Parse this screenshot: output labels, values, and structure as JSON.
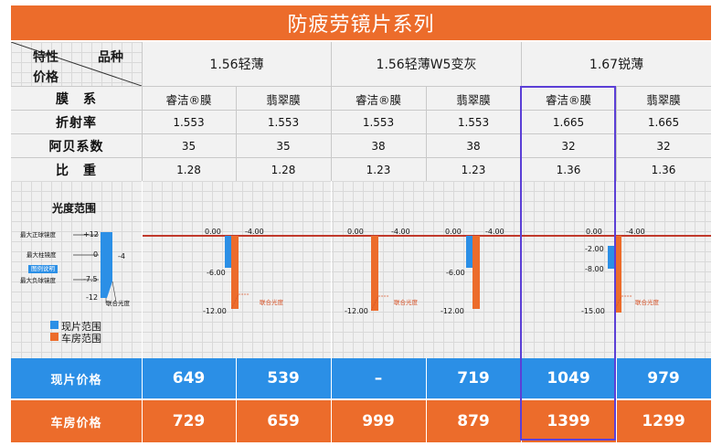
{
  "title": "防疲劳镜片系列",
  "header": {
    "corner_top": "特性",
    "corner_right": "品种",
    "corner_bottom": "价格",
    "groups": [
      "1.56轻薄",
      "1.56轻薄W5变灰",
      "1.67锐薄"
    ]
  },
  "rows": {
    "coating": {
      "label": "膜　系",
      "values": [
        "睿洁®膜",
        "翡翠膜",
        "睿洁®膜",
        "翡翠膜",
        "睿洁®膜",
        "翡翠膜"
      ]
    },
    "refraction": {
      "label": "折射率",
      "values": [
        "1.553",
        "1.553",
        "1.553",
        "1.553",
        "1.665",
        "1.665"
      ]
    },
    "abbe": {
      "label": "阿贝系数",
      "values": [
        "35",
        "35",
        "38",
        "38",
        "32",
        "32"
      ]
    },
    "gravity": {
      "label": "比　重",
      "values": [
        "1.28",
        "1.28",
        "1.23",
        "1.23",
        "1.36",
        "1.36"
      ]
    }
  },
  "range_panel": {
    "title": "光度范围",
    "legend_key": {
      "max_plus_sph": "最大正球镜度",
      "max_cyl": "最大柱镜度",
      "button": "图例说明",
      "max_minus_sph": "最大负球镜度",
      "v_plus12": "+12",
      "v_0": "0",
      "v_minus4": "-4",
      "v_minus75": "-7.5",
      "v_minus12": "-12",
      "combined": "联合光度"
    },
    "legend": {
      "stock": "现片范围",
      "lab": "车房范围"
    },
    "colors": {
      "stock": "#2b8fe6",
      "lab": "#ec6c2b",
      "baseline": "#c0392b"
    },
    "combined_label": "联合光度",
    "cells": [
      {
        "top_left": "0.00",
        "top_right": "-4.00",
        "labels": [
          "-6.00",
          "-12.00"
        ],
        "show_combined": true
      },
      {
        "top_left": "0.00",
        "top_right": "-4.00",
        "labels": [
          "-12.00"
        ],
        "show_combined": true
      },
      {
        "top_left": "0.00",
        "top_right": "-4.00",
        "labels": [
          "-6.00",
          "-12.00"
        ],
        "show_combined": false
      },
      {
        "top_left": "0.00",
        "top_right": "-4.00",
        "labels": [
          "-2.00",
          "-8.00",
          "-15.00"
        ],
        "show_combined": true
      }
    ]
  },
  "prices": {
    "stock": {
      "label": "现片价格",
      "values": [
        "649",
        "539",
        "–",
        "719",
        "1049",
        "979"
      ]
    },
    "lab": {
      "label": "车房价格",
      "values": [
        "729",
        "659",
        "999",
        "879",
        "1399",
        "1299"
      ]
    }
  },
  "highlight_color": "#5b3fd6"
}
